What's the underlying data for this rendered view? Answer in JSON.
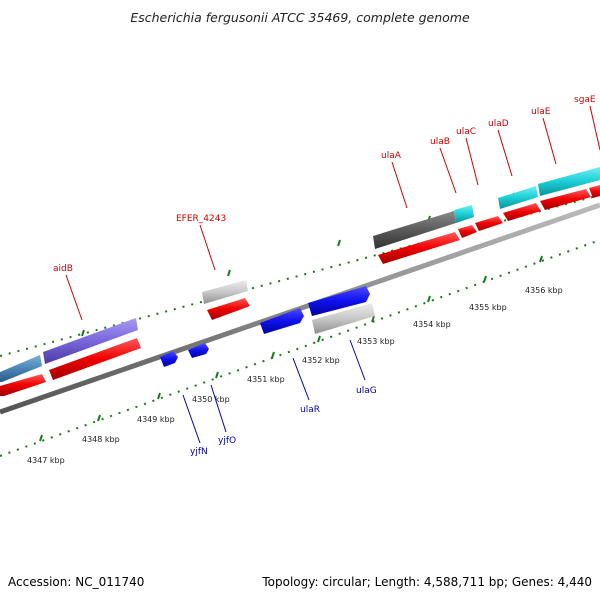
{
  "title": "Escherichia fergusonii ATCC 35469, complete genome",
  "footer": {
    "accession": "Accession: NC_011740",
    "summary": "Topology: circular; Length: 4,588,711 bp; Genes: 4,440"
  },
  "colors": {
    "forward_label": "#cc0000",
    "reverse_label": "#0000aa",
    "backbone": "#888888",
    "ticks": "#1a7a1a"
  },
  "scale_labels": [
    "4347 kbp",
    "4348 kbp",
    "4349 kbp",
    "4350 kbp",
    "4351 kbp",
    "4352 kbp",
    "4353 kbp",
    "4354 kbp",
    "4355 kbp",
    "4356 kbp"
  ],
  "forward_gene_labels": [
    "aidB",
    "EFER_4243",
    "ulaA",
    "ulaB",
    "ulaC",
    "ulaD",
    "ulaE",
    "sgaE"
  ],
  "reverse_gene_labels": [
    "yjfN",
    "yjfO",
    "ulaR",
    "ulaG"
  ]
}
